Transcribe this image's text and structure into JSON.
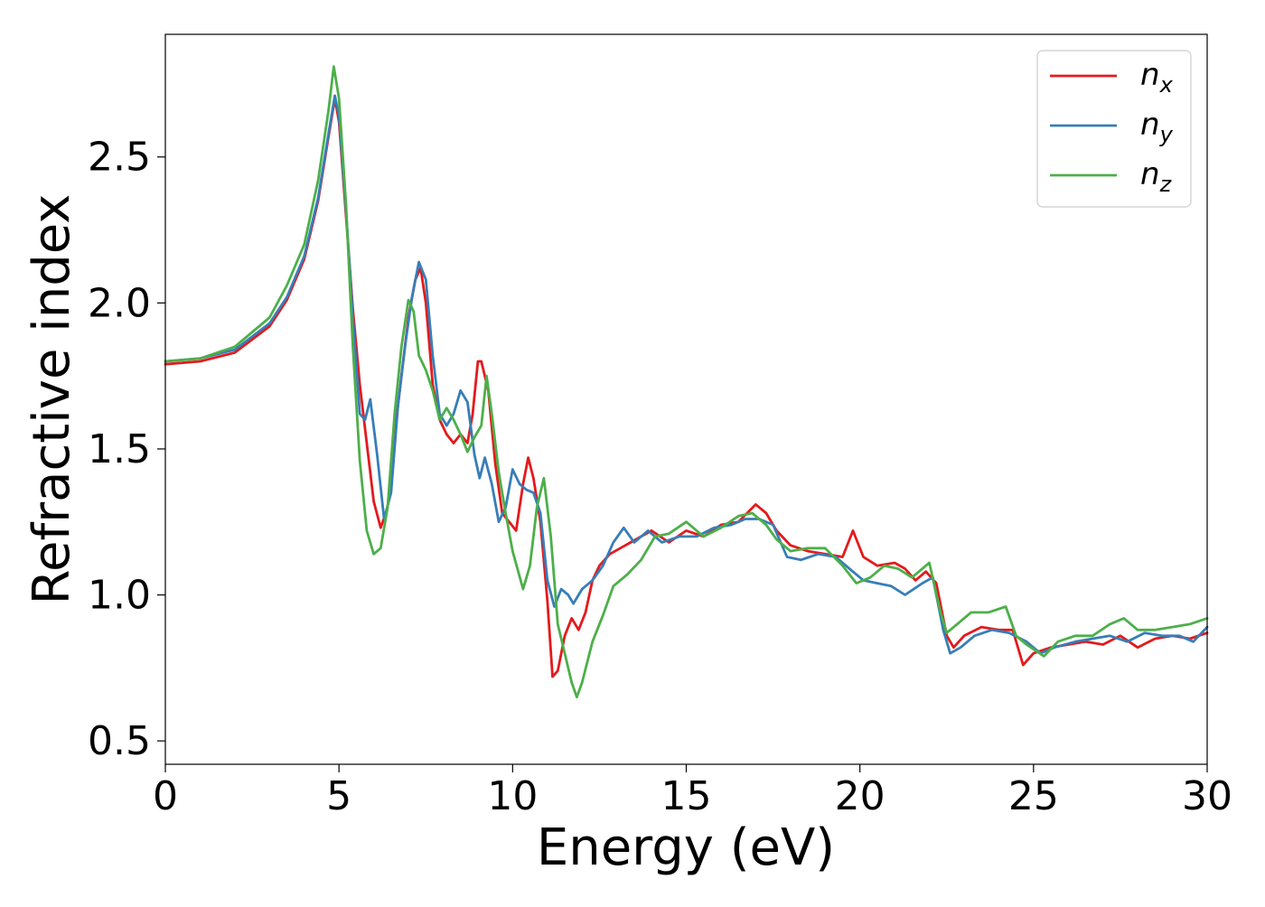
{
  "chart_data": {
    "type": "line",
    "title": "",
    "xlabel": "Energy (eV)",
    "ylabel": "Refractive index",
    "xlim": [
      0,
      30
    ],
    "ylim": [
      0.42,
      2.92
    ],
    "xticks": [
      0,
      5,
      10,
      15,
      20,
      25,
      30
    ],
    "xtick_labels": [
      "0",
      "5",
      "10",
      "15",
      "20",
      "25",
      "30"
    ],
    "yticks": [
      0.5,
      1.0,
      1.5,
      2.0,
      2.5
    ],
    "ytick_labels": [
      "0.5",
      "1.0",
      "1.5",
      "2.0",
      "2.5"
    ],
    "grid": false,
    "legend_position": "top-right",
    "series": [
      {
        "name": "n",
        "subscript": "x",
        "color": "#e41a1c",
        "points": [
          [
            0,
            1.79
          ],
          [
            1,
            1.8
          ],
          [
            2,
            1.83
          ],
          [
            3,
            1.92
          ],
          [
            3.5,
            2.01
          ],
          [
            4,
            2.15
          ],
          [
            4.4,
            2.35
          ],
          [
            4.7,
            2.57
          ],
          [
            4.88,
            2.7
          ],
          [
            5.0,
            2.62
          ],
          [
            5.2,
            2.3
          ],
          [
            5.4,
            1.98
          ],
          [
            5.6,
            1.72
          ],
          [
            5.8,
            1.52
          ],
          [
            6.0,
            1.32
          ],
          [
            6.2,
            1.23
          ],
          [
            6.4,
            1.3
          ],
          [
            6.6,
            1.55
          ],
          [
            6.8,
            1.75
          ],
          [
            7.0,
            1.95
          ],
          [
            7.2,
            2.08
          ],
          [
            7.35,
            2.12
          ],
          [
            7.5,
            2.0
          ],
          [
            7.7,
            1.72
          ],
          [
            7.9,
            1.6
          ],
          [
            8.1,
            1.55
          ],
          [
            8.3,
            1.52
          ],
          [
            8.5,
            1.55
          ],
          [
            8.7,
            1.52
          ],
          [
            8.85,
            1.62
          ],
          [
            9.0,
            1.8
          ],
          [
            9.1,
            1.8
          ],
          [
            9.3,
            1.7
          ],
          [
            9.5,
            1.45
          ],
          [
            9.7,
            1.28
          ],
          [
            9.9,
            1.25
          ],
          [
            10.1,
            1.22
          ],
          [
            10.3,
            1.38
          ],
          [
            10.45,
            1.47
          ],
          [
            10.6,
            1.4
          ],
          [
            10.8,
            1.25
          ],
          [
            11.0,
            0.98
          ],
          [
            11.15,
            0.72
          ],
          [
            11.3,
            0.74
          ],
          [
            11.5,
            0.86
          ],
          [
            11.7,
            0.92
          ],
          [
            11.9,
            0.88
          ],
          [
            12.1,
            0.94
          ],
          [
            12.3,
            1.05
          ],
          [
            12.5,
            1.1
          ],
          [
            12.8,
            1.14
          ],
          [
            13.1,
            1.16
          ],
          [
            13.4,
            1.18
          ],
          [
            13.7,
            1.2
          ],
          [
            14.0,
            1.22
          ],
          [
            14.5,
            1.18
          ],
          [
            15,
            1.22
          ],
          [
            15.5,
            1.2
          ],
          [
            16,
            1.24
          ],
          [
            16.5,
            1.25
          ],
          [
            17.0,
            1.31
          ],
          [
            17.3,
            1.28
          ],
          [
            17.6,
            1.22
          ],
          [
            18.0,
            1.17
          ],
          [
            18.5,
            1.15
          ],
          [
            19.0,
            1.14
          ],
          [
            19.5,
            1.13
          ],
          [
            19.8,
            1.22
          ],
          [
            20.1,
            1.13
          ],
          [
            20.5,
            1.1
          ],
          [
            21.0,
            1.11
          ],
          [
            21.3,
            1.09
          ],
          [
            21.6,
            1.05
          ],
          [
            21.9,
            1.08
          ],
          [
            22.2,
            1.04
          ],
          [
            22.5,
            0.86
          ],
          [
            22.7,
            0.82
          ],
          [
            23.0,
            0.86
          ],
          [
            23.5,
            0.89
          ],
          [
            24.0,
            0.88
          ],
          [
            24.4,
            0.88
          ],
          [
            24.7,
            0.76
          ],
          [
            25.0,
            0.8
          ],
          [
            25.5,
            0.82
          ],
          [
            26,
            0.83
          ],
          [
            26.5,
            0.84
          ],
          [
            27,
            0.83
          ],
          [
            27.5,
            0.86
          ],
          [
            28,
            0.82
          ],
          [
            28.5,
            0.85
          ],
          [
            29,
            0.86
          ],
          [
            29.5,
            0.85
          ],
          [
            30,
            0.87
          ]
        ]
      },
      {
        "name": "n",
        "subscript": "y",
        "color": "#377eb8",
        "points": [
          [
            0,
            1.8
          ],
          [
            1,
            1.81
          ],
          [
            2,
            1.84
          ],
          [
            3,
            1.93
          ],
          [
            3.5,
            2.02
          ],
          [
            4,
            2.16
          ],
          [
            4.4,
            2.36
          ],
          [
            4.7,
            2.58
          ],
          [
            4.88,
            2.71
          ],
          [
            5.0,
            2.64
          ],
          [
            5.2,
            2.32
          ],
          [
            5.4,
            1.95
          ],
          [
            5.6,
            1.62
          ],
          [
            5.75,
            1.6
          ],
          [
            5.9,
            1.67
          ],
          [
            6.1,
            1.48
          ],
          [
            6.3,
            1.26
          ],
          [
            6.5,
            1.35
          ],
          [
            6.7,
            1.65
          ],
          [
            6.9,
            1.85
          ],
          [
            7.1,
            2.02
          ],
          [
            7.3,
            2.14
          ],
          [
            7.5,
            2.08
          ],
          [
            7.7,
            1.82
          ],
          [
            7.9,
            1.62
          ],
          [
            8.1,
            1.58
          ],
          [
            8.3,
            1.62
          ],
          [
            8.5,
            1.7
          ],
          [
            8.7,
            1.66
          ],
          [
            8.9,
            1.48
          ],
          [
            9.05,
            1.4
          ],
          [
            9.2,
            1.47
          ],
          [
            9.4,
            1.38
          ],
          [
            9.6,
            1.25
          ],
          [
            9.8,
            1.3
          ],
          [
            10.0,
            1.43
          ],
          [
            10.2,
            1.38
          ],
          [
            10.4,
            1.36
          ],
          [
            10.6,
            1.35
          ],
          [
            10.8,
            1.28
          ],
          [
            11.0,
            1.05
          ],
          [
            11.2,
            0.96
          ],
          [
            11.4,
            1.02
          ],
          [
            11.6,
            1.0
          ],
          [
            11.75,
            0.97
          ],
          [
            12.0,
            1.02
          ],
          [
            12.3,
            1.05
          ],
          [
            12.6,
            1.1
          ],
          [
            12.9,
            1.18
          ],
          [
            13.2,
            1.23
          ],
          [
            13.5,
            1.18
          ],
          [
            13.9,
            1.22
          ],
          [
            14.3,
            1.18
          ],
          [
            14.8,
            1.2
          ],
          [
            15.3,
            1.2
          ],
          [
            15.8,
            1.23
          ],
          [
            16.3,
            1.24
          ],
          [
            16.7,
            1.26
          ],
          [
            17.1,
            1.26
          ],
          [
            17.5,
            1.24
          ],
          [
            17.9,
            1.13
          ],
          [
            18.3,
            1.12
          ],
          [
            18.8,
            1.14
          ],
          [
            19.3,
            1.13
          ],
          [
            19.7,
            1.09
          ],
          [
            20.1,
            1.05
          ],
          [
            20.5,
            1.04
          ],
          [
            20.9,
            1.03
          ],
          [
            21.3,
            1.0
          ],
          [
            21.8,
            1.04
          ],
          [
            22.1,
            1.06
          ],
          [
            22.4,
            0.88
          ],
          [
            22.6,
            0.8
          ],
          [
            22.9,
            0.82
          ],
          [
            23.3,
            0.86
          ],
          [
            23.8,
            0.88
          ],
          [
            24.3,
            0.87
          ],
          [
            24.8,
            0.84
          ],
          [
            25.2,
            0.8
          ],
          [
            25.6,
            0.82
          ],
          [
            26.2,
            0.84
          ],
          [
            26.7,
            0.85
          ],
          [
            27.2,
            0.86
          ],
          [
            27.7,
            0.84
          ],
          [
            28.2,
            0.87
          ],
          [
            28.7,
            0.86
          ],
          [
            29.2,
            0.86
          ],
          [
            29.6,
            0.84
          ],
          [
            30,
            0.89
          ]
        ]
      },
      {
        "name": "n",
        "subscript": "z",
        "color": "#4daf4a",
        "points": [
          [
            0,
            1.8
          ],
          [
            1,
            1.81
          ],
          [
            2,
            1.85
          ],
          [
            3,
            1.95
          ],
          [
            3.5,
            2.06
          ],
          [
            4,
            2.2
          ],
          [
            4.4,
            2.42
          ],
          [
            4.7,
            2.66
          ],
          [
            4.85,
            2.81
          ],
          [
            5.0,
            2.7
          ],
          [
            5.2,
            2.34
          ],
          [
            5.4,
            1.85
          ],
          [
            5.6,
            1.46
          ],
          [
            5.8,
            1.22
          ],
          [
            6.0,
            1.14
          ],
          [
            6.2,
            1.16
          ],
          [
            6.4,
            1.3
          ],
          [
            6.6,
            1.62
          ],
          [
            6.8,
            1.85
          ],
          [
            7.0,
            2.01
          ],
          [
            7.15,
            1.97
          ],
          [
            7.3,
            1.82
          ],
          [
            7.5,
            1.77
          ],
          [
            7.7,
            1.7
          ],
          [
            7.9,
            1.6
          ],
          [
            8.1,
            1.64
          ],
          [
            8.3,
            1.6
          ],
          [
            8.5,
            1.55
          ],
          [
            8.7,
            1.49
          ],
          [
            8.9,
            1.54
          ],
          [
            9.1,
            1.58
          ],
          [
            9.25,
            1.75
          ],
          [
            9.4,
            1.62
          ],
          [
            9.6,
            1.42
          ],
          [
            9.8,
            1.28
          ],
          [
            10.0,
            1.15
          ],
          [
            10.3,
            1.02
          ],
          [
            10.5,
            1.1
          ],
          [
            10.7,
            1.3
          ],
          [
            10.9,
            1.4
          ],
          [
            11.1,
            1.2
          ],
          [
            11.3,
            0.9
          ],
          [
            11.5,
            0.8
          ],
          [
            11.7,
            0.7
          ],
          [
            11.85,
            0.65
          ],
          [
            12.0,
            0.7
          ],
          [
            12.3,
            0.84
          ],
          [
            12.6,
            0.93
          ],
          [
            12.9,
            1.03
          ],
          [
            13.3,
            1.07
          ],
          [
            13.7,
            1.12
          ],
          [
            14.1,
            1.2
          ],
          [
            14.5,
            1.21
          ],
          [
            15.0,
            1.25
          ],
          [
            15.5,
            1.2
          ],
          [
            16.0,
            1.23
          ],
          [
            16.5,
            1.27
          ],
          [
            16.9,
            1.28
          ],
          [
            17.3,
            1.24
          ],
          [
            17.6,
            1.19
          ],
          [
            18.0,
            1.15
          ],
          [
            18.5,
            1.16
          ],
          [
            19.0,
            1.16
          ],
          [
            19.5,
            1.1
          ],
          [
            19.9,
            1.04
          ],
          [
            20.3,
            1.06
          ],
          [
            20.7,
            1.1
          ],
          [
            21.1,
            1.09
          ],
          [
            21.5,
            1.06
          ],
          [
            22.0,
            1.11
          ],
          [
            22.3,
            0.95
          ],
          [
            22.5,
            0.87
          ],
          [
            22.8,
            0.9
          ],
          [
            23.2,
            0.94
          ],
          [
            23.7,
            0.94
          ],
          [
            24.2,
            0.96
          ],
          [
            24.5,
            0.86
          ],
          [
            24.8,
            0.83
          ],
          [
            25.3,
            0.79
          ],
          [
            25.7,
            0.84
          ],
          [
            26.2,
            0.86
          ],
          [
            26.7,
            0.86
          ],
          [
            27.2,
            0.9
          ],
          [
            27.6,
            0.92
          ],
          [
            28.0,
            0.88
          ],
          [
            28.5,
            0.88
          ],
          [
            29.0,
            0.89
          ],
          [
            29.5,
            0.9
          ],
          [
            30,
            0.92
          ]
        ]
      }
    ]
  }
}
